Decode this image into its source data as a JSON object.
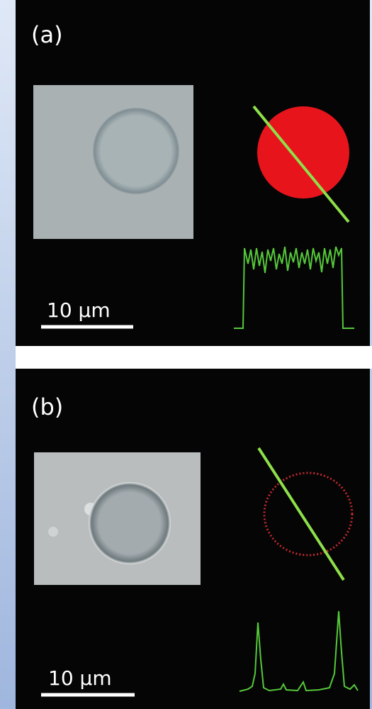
{
  "panels": [
    {
      "label": "(a)",
      "scale_bar": "10 μm"
    },
    {
      "label": "(b)",
      "scale_bar": "10 μm"
    }
  ]
}
